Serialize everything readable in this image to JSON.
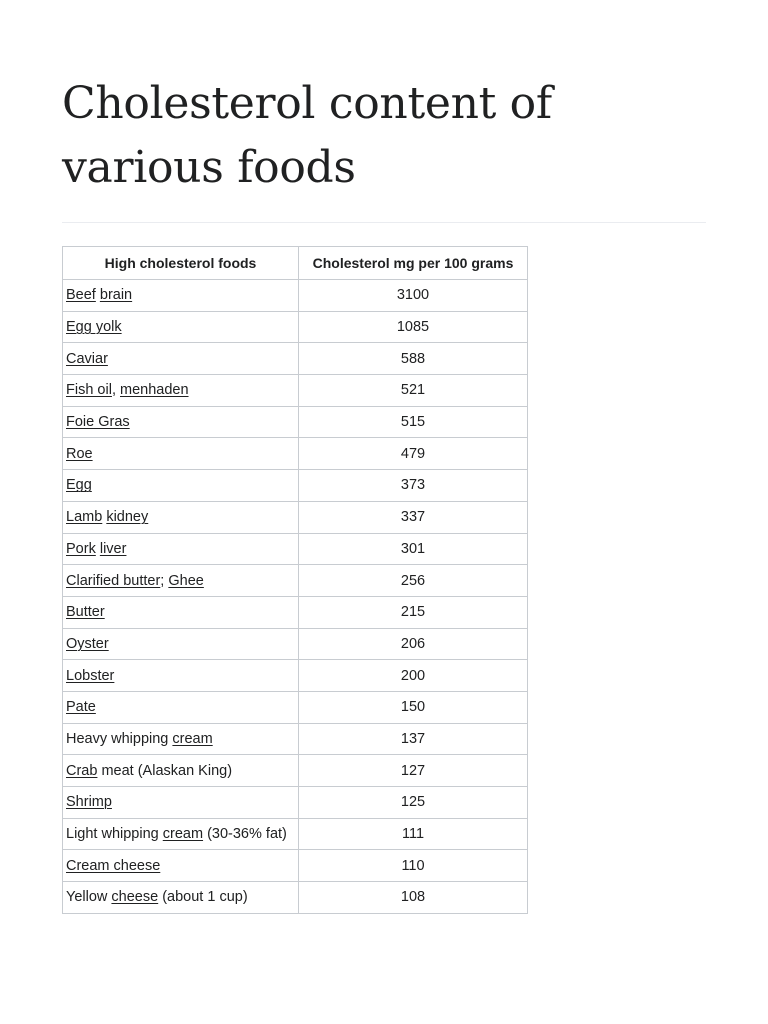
{
  "page": {
    "title": "Cholesterol content of various foods"
  },
  "table": {
    "headers": [
      "High cholesterol foods",
      "Cholesterol mg per 100 grams"
    ],
    "rows": [
      {
        "food": [
          {
            "t": "Beef",
            "link": true
          },
          {
            "t": " "
          },
          {
            "t": "brain",
            "link": true
          }
        ],
        "value": "3100"
      },
      {
        "food": [
          {
            "t": "Egg yolk",
            "link": true
          }
        ],
        "value": "1085"
      },
      {
        "food": [
          {
            "t": "Caviar",
            "link": true
          }
        ],
        "value": "588"
      },
      {
        "food": [
          {
            "t": "Fish oil",
            "link": true
          },
          {
            "t": ", "
          },
          {
            "t": "menhaden",
            "link": true
          }
        ],
        "value": "521"
      },
      {
        "food": [
          {
            "t": "Foie Gras",
            "link": true
          }
        ],
        "value": "515"
      },
      {
        "food": [
          {
            "t": "Roe",
            "link": true
          }
        ],
        "value": "479"
      },
      {
        "food": [
          {
            "t": "Egg",
            "link": true
          }
        ],
        "value": "373"
      },
      {
        "food": [
          {
            "t": "Lamb",
            "link": true
          },
          {
            "t": " "
          },
          {
            "t": "kidney",
            "link": true
          }
        ],
        "value": "337"
      },
      {
        "food": [
          {
            "t": "Pork",
            "link": true
          },
          {
            "t": " "
          },
          {
            "t": "liver",
            "link": true
          }
        ],
        "value": "301"
      },
      {
        "food": [
          {
            "t": "Clarified butter",
            "link": true
          },
          {
            "t": "; "
          },
          {
            "t": "Ghee",
            "link": true
          }
        ],
        "value": "256"
      },
      {
        "food": [
          {
            "t": "Butter",
            "link": true
          }
        ],
        "value": "215"
      },
      {
        "food": [
          {
            "t": "Oyster",
            "link": true
          }
        ],
        "value": "206"
      },
      {
        "food": [
          {
            "t": "Lobster",
            "link": true
          }
        ],
        "value": "200"
      },
      {
        "food": [
          {
            "t": "Pate",
            "link": true
          }
        ],
        "value": "150"
      },
      {
        "food": [
          {
            "t": "Heavy whipping "
          },
          {
            "t": "cream",
            "link": true
          }
        ],
        "value": "137"
      },
      {
        "food": [
          {
            "t": "Crab",
            "link": true
          },
          {
            "t": " meat (Alaskan King)"
          }
        ],
        "value": "127"
      },
      {
        "food": [
          {
            "t": "Shrimp",
            "link": true
          }
        ],
        "value": "125"
      },
      {
        "food": [
          {
            "t": "Light whipping "
          },
          {
            "t": "cream",
            "link": true
          },
          {
            "t": " (30-36% fat)"
          }
        ],
        "value": "111"
      },
      {
        "food": [
          {
            "t": "Cream cheese",
            "link": true
          }
        ],
        "value": "110"
      },
      {
        "food": [
          {
            "t": "Yellow "
          },
          {
            "t": "cheese",
            "link": true
          },
          {
            "t": " (about 1 cup)"
          }
        ],
        "value": "108"
      }
    ]
  }
}
